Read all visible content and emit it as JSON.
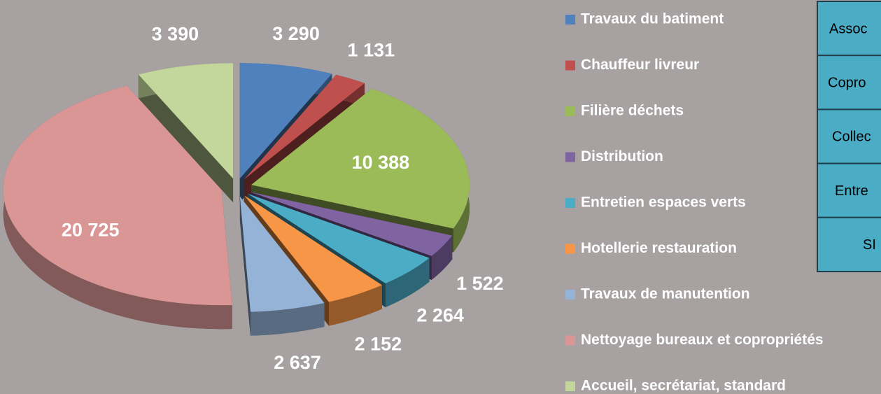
{
  "chart_data": {
    "type": "pie",
    "categories": [
      "Travaux du batiment",
      "Chauffeur livreur",
      "Filière déchets",
      "Distribution",
      "Entretien espaces verts",
      "Hotellerie restauration",
      "Travaux de manutention",
      "Nettoyage bureaux et copropriétés",
      "Accueil, secrétariat, standard"
    ],
    "values": [
      3290,
      1131,
      10388,
      1522,
      2264,
      2152,
      2637,
      20725,
      3390
    ],
    "value_labels": [
      "3 290",
      "1 131",
      "10 388",
      "1 522",
      "2 264",
      "2 152",
      "2 637",
      "20 725",
      "3 390"
    ],
    "colors": [
      "#4f81bd",
      "#c0504d",
      "#9bbb59",
      "#8064a2",
      "#4bacc6",
      "#f79646",
      "#95b3d7",
      "#d99694",
      "#c3d69b"
    ],
    "legend": "right"
  },
  "table": {
    "rows": [
      "Assoc",
      "Copro",
      "Collec",
      "Entre",
      "SI"
    ]
  }
}
